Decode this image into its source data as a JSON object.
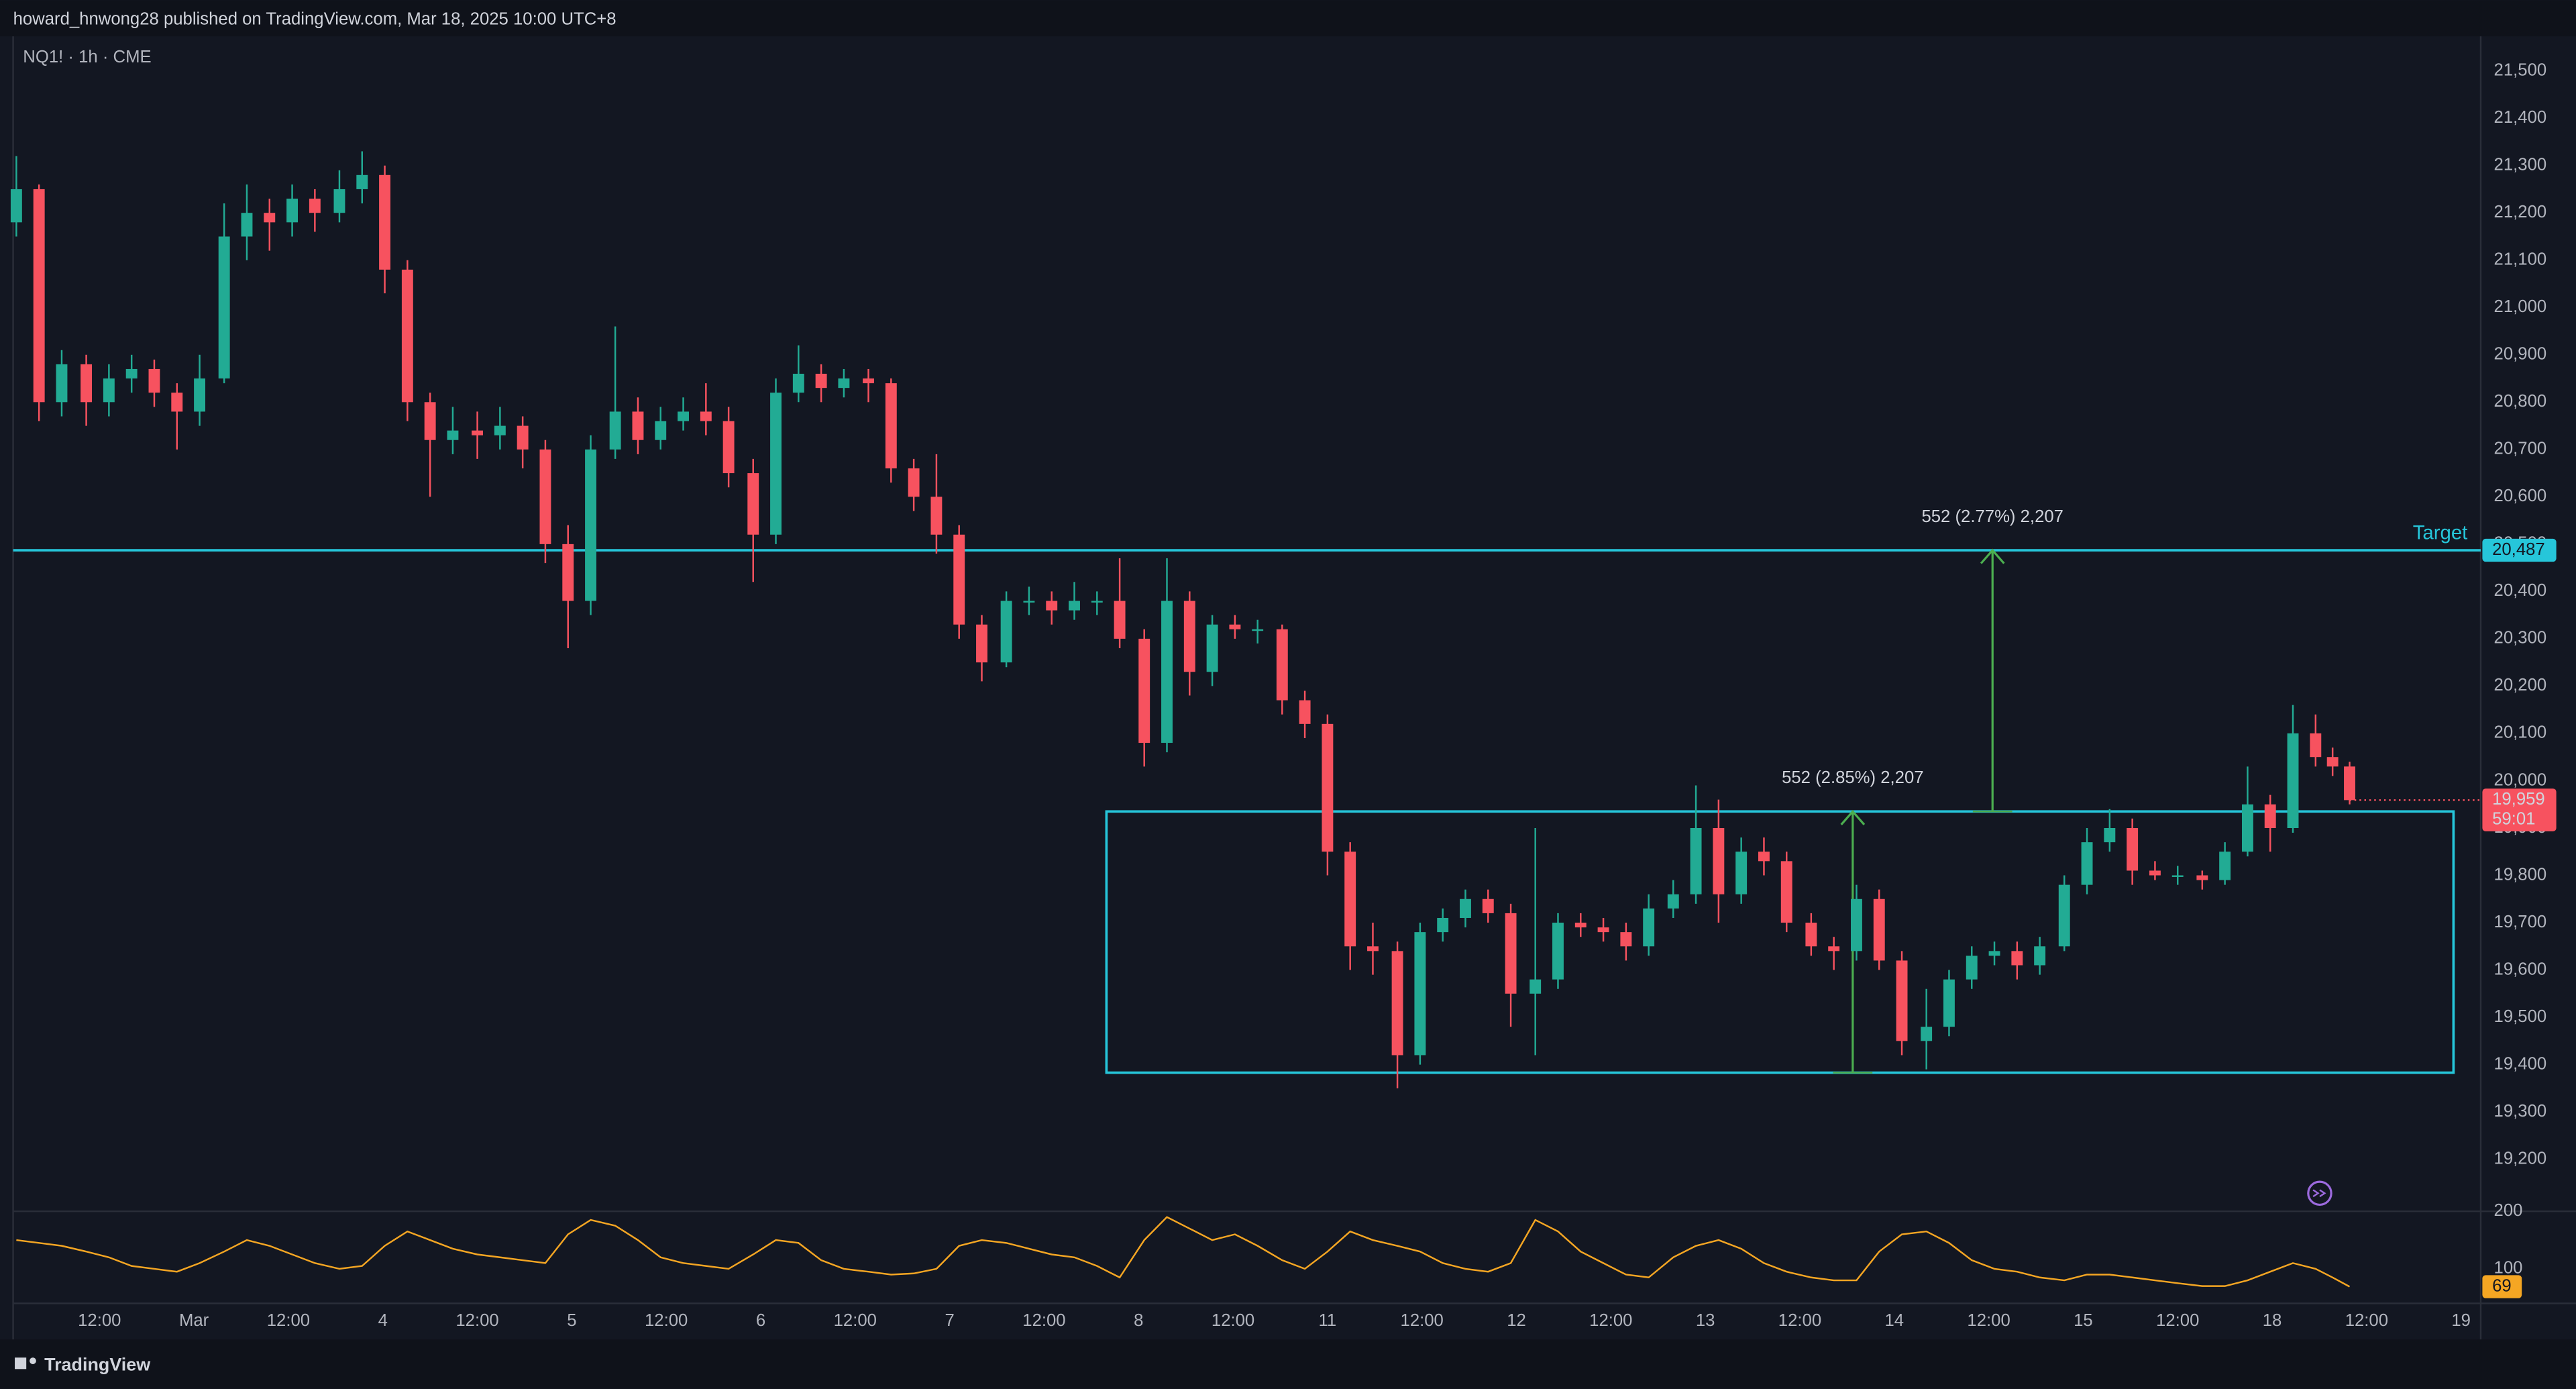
{
  "header": {
    "text": "howard_hnwong28 published on TradingView.com, Mar 18, 2025 10:00 UTC+8",
    "symbol": "NQ1! · 1h · CME"
  },
  "footer": {
    "brand": "TradingView"
  },
  "chart_data": {
    "type": "candlestick",
    "up_color": "#22ab94",
    "down_color": "#f7525f",
    "xlim": [
      -0.957,
      12.104
    ],
    "xticks": [
      {
        "value": -0.5,
        "label": "12:00"
      },
      {
        "value": 0,
        "label": "Mar"
      },
      {
        "value": 0.5,
        "label": "12:00"
      },
      {
        "value": 1,
        "label": "4"
      },
      {
        "value": 1.5,
        "label": "12:00"
      },
      {
        "value": 2,
        "label": "5"
      },
      {
        "value": 2.5,
        "label": "12:00"
      },
      {
        "value": 3,
        "label": "6"
      },
      {
        "value": 3.5,
        "label": "12:00"
      },
      {
        "value": 4,
        "label": "7"
      },
      {
        "value": 4.5,
        "label": "12:00"
      },
      {
        "value": 5,
        "label": "8"
      },
      {
        "value": 5.5,
        "label": "12:00"
      },
      {
        "value": 6,
        "label": "11"
      },
      {
        "value": 6.5,
        "label": "12:00"
      },
      {
        "value": 7,
        "label": "12"
      },
      {
        "value": 7.5,
        "label": "12:00"
      },
      {
        "value": 8,
        "label": "13"
      },
      {
        "value": 8.5,
        "label": "12:00"
      },
      {
        "value": 9,
        "label": "14"
      },
      {
        "value": 9.5,
        "label": "12:00"
      },
      {
        "value": 10,
        "label": "15"
      },
      {
        "value": 10.5,
        "label": "12:00"
      },
      {
        "value": 11,
        "label": "18"
      },
      {
        "value": 11.5,
        "label": "12:00"
      },
      {
        "value": 12,
        "label": "19"
      }
    ],
    "ylim": [
      19090,
      21573
    ],
    "yticks": [
      {
        "value": 19200,
        "label": "19,200"
      },
      {
        "value": 19300,
        "label": "19,300"
      },
      {
        "value": 19400,
        "label": "19,400"
      },
      {
        "value": 19500,
        "label": "19,500"
      },
      {
        "value": 19600,
        "label": "19,600"
      },
      {
        "value": 19700,
        "label": "19,700"
      },
      {
        "value": 19800,
        "label": "19,800"
      },
      {
        "value": 19900,
        "label": "19,900"
      },
      {
        "value": 20000,
        "label": "20,000"
      },
      {
        "value": 20100,
        "label": "20,100"
      },
      {
        "value": 20200,
        "label": "20,200"
      },
      {
        "value": 20300,
        "label": "20,300"
      },
      {
        "value": 20400,
        "label": "20,400"
      },
      {
        "value": 20500,
        "label": "20,500"
      },
      {
        "value": 20600,
        "label": "20,600"
      },
      {
        "value": 20700,
        "label": "20,700"
      },
      {
        "value": 20800,
        "label": "20,800"
      },
      {
        "value": 20900,
        "label": "20,900"
      },
      {
        "value": 21000,
        "label": "21,000"
      },
      {
        "value": 21100,
        "label": "21,100"
      },
      {
        "value": 21200,
        "label": "21,200"
      },
      {
        "value": 21300,
        "label": "21,300"
      },
      {
        "value": 21400,
        "label": "21,400"
      },
      {
        "value": 21500,
        "label": "21,500"
      }
    ],
    "candles": [
      [
        -0.94,
        21180,
        21320,
        21150,
        21250
      ],
      [
        -0.82,
        21250,
        21260,
        20760,
        20800
      ],
      [
        -0.7,
        20800,
        20910,
        20770,
        20880
      ],
      [
        -0.57,
        20880,
        20900,
        20750,
        20800
      ],
      [
        -0.45,
        20800,
        20880,
        20770,
        20850
      ],
      [
        -0.33,
        20850,
        20900,
        20820,
        20870
      ],
      [
        -0.21,
        20870,
        20890,
        20790,
        20820
      ],
      [
        -0.09,
        20820,
        20840,
        20700,
        20780
      ],
      [
        0.03,
        20780,
        20900,
        20750,
        20850
      ],
      [
        0.16,
        20850,
        21220,
        20840,
        21150
      ],
      [
        0.28,
        21150,
        21260,
        21100,
        21200
      ],
      [
        0.4,
        21200,
        21230,
        21120,
        21180
      ],
      [
        0.52,
        21180,
        21260,
        21150,
        21230
      ],
      [
        0.64,
        21230,
        21250,
        21160,
        21200
      ],
      [
        0.77,
        21200,
        21290,
        21180,
        21250
      ],
      [
        0.89,
        21250,
        21330,
        21220,
        21280
      ],
      [
        1.01,
        21280,
        21300,
        21030,
        21080
      ],
      [
        1.13,
        21080,
        21100,
        20760,
        20800
      ],
      [
        1.25,
        20800,
        20820,
        20600,
        20720
      ],
      [
        1.37,
        20720,
        20790,
        20690,
        20740
      ],
      [
        1.5,
        20740,
        20780,
        20680,
        20730
      ],
      [
        1.62,
        20730,
        20790,
        20700,
        20750
      ],
      [
        1.74,
        20750,
        20770,
        20660,
        20700
      ],
      [
        1.86,
        20700,
        20720,
        20460,
        20500
      ],
      [
        1.98,
        20500,
        20540,
        20280,
        20380
      ],
      [
        2.1,
        20380,
        20730,
        20350,
        20700
      ],
      [
        2.23,
        20700,
        20960,
        20680,
        20780
      ],
      [
        2.35,
        20780,
        20810,
        20690,
        20720
      ],
      [
        2.47,
        20720,
        20790,
        20700,
        20760
      ],
      [
        2.59,
        20760,
        20810,
        20740,
        20780
      ],
      [
        2.71,
        20780,
        20840,
        20730,
        20760
      ],
      [
        2.83,
        20760,
        20790,
        20620,
        20650
      ],
      [
        2.96,
        20650,
        20680,
        20420,
        20520
      ],
      [
        3.08,
        20520,
        20850,
        20500,
        20820
      ],
      [
        3.2,
        20820,
        20920,
        20800,
        20860
      ],
      [
        3.32,
        20860,
        20880,
        20800,
        20830
      ],
      [
        3.44,
        20830,
        20870,
        20810,
        20850
      ],
      [
        3.57,
        20850,
        20870,
        20800,
        20840
      ],
      [
        3.69,
        20840,
        20850,
        20630,
        20660
      ],
      [
        3.81,
        20660,
        20680,
        20570,
        20600
      ],
      [
        3.93,
        20600,
        20690,
        20480,
        20520
      ],
      [
        4.05,
        20520,
        20540,
        20300,
        20330
      ],
      [
        4.17,
        20330,
        20350,
        20210,
        20250
      ],
      [
        4.3,
        20250,
        20400,
        20240,
        20380
      ],
      [
        4.42,
        20380,
        20410,
        20350,
        20380
      ],
      [
        4.54,
        20380,
        20400,
        20330,
        20360
      ],
      [
        4.66,
        20360,
        20420,
        20340,
        20380
      ],
      [
        4.78,
        20380,
        20400,
        20350,
        20380
      ],
      [
        4.9,
        20380,
        20470,
        20280,
        20300
      ],
      [
        5.03,
        20300,
        20320,
        20030,
        20080
      ],
      [
        5.15,
        20080,
        20470,
        20060,
        20380
      ],
      [
        5.27,
        20380,
        20400,
        20180,
        20230
      ],
      [
        5.39,
        20230,
        20350,
        20200,
        20330
      ],
      [
        5.51,
        20330,
        20350,
        20300,
        20320
      ],
      [
        5.63,
        20320,
        20340,
        20290,
        20320
      ],
      [
        5.76,
        20320,
        20330,
        20140,
        20170
      ],
      [
        5.88,
        20170,
        20190,
        20090,
        20120
      ],
      [
        6.0,
        20120,
        20140,
        19800,
        19850
      ],
      [
        6.12,
        19850,
        19870,
        19600,
        19650
      ],
      [
        6.24,
        19650,
        19700,
        19590,
        19640
      ],
      [
        6.37,
        19640,
        19660,
        19350,
        19420
      ],
      [
        6.49,
        19420,
        19700,
        19400,
        19680
      ],
      [
        6.61,
        19680,
        19730,
        19660,
        19710
      ],
      [
        6.73,
        19710,
        19770,
        19690,
        19750
      ],
      [
        6.85,
        19750,
        19770,
        19700,
        19720
      ],
      [
        6.97,
        19720,
        19740,
        19480,
        19550
      ],
      [
        7.1,
        19550,
        19900,
        19420,
        19580
      ],
      [
        7.22,
        19580,
        19720,
        19560,
        19700
      ],
      [
        7.34,
        19700,
        19720,
        19670,
        19690
      ],
      [
        7.46,
        19690,
        19710,
        19660,
        19680
      ],
      [
        7.58,
        19680,
        19700,
        19620,
        19650
      ],
      [
        7.7,
        19650,
        19760,
        19630,
        19730
      ],
      [
        7.83,
        19730,
        19790,
        19710,
        19760
      ],
      [
        7.95,
        19760,
        19990,
        19740,
        19900
      ],
      [
        8.07,
        19900,
        19960,
        19700,
        19760
      ],
      [
        8.19,
        19760,
        19880,
        19740,
        19850
      ],
      [
        8.31,
        19850,
        19880,
        19800,
        19830
      ],
      [
        8.43,
        19830,
        19850,
        19680,
        19700
      ],
      [
        8.56,
        19700,
        19720,
        19630,
        19650
      ],
      [
        8.68,
        19650,
        19670,
        19600,
        19640
      ],
      [
        8.8,
        19640,
        19780,
        19620,
        19750
      ],
      [
        8.92,
        19750,
        19770,
        19600,
        19620
      ],
      [
        9.04,
        19620,
        19640,
        19420,
        19450
      ],
      [
        9.17,
        19450,
        19560,
        19390,
        19480
      ],
      [
        9.29,
        19480,
        19600,
        19460,
        19580
      ],
      [
        9.41,
        19580,
        19650,
        19560,
        19630
      ],
      [
        9.53,
        19630,
        19660,
        19610,
        19640
      ],
      [
        9.65,
        19640,
        19660,
        19580,
        19610
      ],
      [
        9.77,
        19610,
        19670,
        19590,
        19650
      ],
      [
        9.9,
        19650,
        19800,
        19640,
        19780
      ],
      [
        10.02,
        19780,
        19900,
        19760,
        19870
      ],
      [
        10.14,
        19870,
        19940,
        19850,
        19900
      ],
      [
        10.26,
        19900,
        19920,
        19780,
        19810
      ],
      [
        10.38,
        19810,
        19830,
        19790,
        19800
      ],
      [
        10.5,
        19800,
        19820,
        19780,
        19800
      ],
      [
        10.63,
        19800,
        19810,
        19770,
        19790
      ],
      [
        10.75,
        19790,
        19870,
        19780,
        19850
      ],
      [
        10.87,
        19850,
        20030,
        19840,
        19950
      ],
      [
        10.99,
        19950,
        19970,
        19850,
        19900
      ],
      [
        11.11,
        19900,
        20160,
        19890,
        20100
      ],
      [
        11.23,
        20100,
        20140,
        20030,
        20050
      ],
      [
        11.32,
        20050,
        20070,
        20010,
        20030
      ],
      [
        11.41,
        20030,
        20040,
        19950,
        19959
      ]
    ],
    "last_price_label": "19,959",
    "countdown": "59:01",
    "target": {
      "label": "Target",
      "value": 20487,
      "value_label": "20,487",
      "color": "#26c6da"
    },
    "range_box": {
      "x": [
        4.83,
        11.96
      ],
      "y": [
        19383,
        19935
      ],
      "color": "#26c6da"
    },
    "measures": [
      {
        "text": "552 (2.85%) 2,207",
        "x": 8.78,
        "from": 19383,
        "to": 19935
      },
      {
        "text": "552 (2.77%) 2,207",
        "x": 9.52,
        "from": 19935,
        "to": 20487
      }
    ],
    "measure_color": "#4caf50",
    "oscillator": {
      "color": "#f5a623",
      "ylim": [
        40,
        200
      ],
      "yticks": [
        100,
        200
      ],
      "values": [
        150,
        145,
        140,
        130,
        120,
        105,
        100,
        95,
        110,
        130,
        150,
        140,
        125,
        110,
        100,
        105,
        140,
        165,
        150,
        135,
        125,
        120,
        115,
        110,
        160,
        185,
        175,
        150,
        120,
        110,
        105,
        100,
        125,
        150,
        145,
        115,
        100,
        95,
        90,
        92,
        100,
        140,
        150,
        145,
        135,
        125,
        120,
        105,
        85,
        150,
        190,
        170,
        150,
        160,
        140,
        115,
        100,
        130,
        165,
        150,
        140,
        130,
        110,
        100,
        95,
        110,
        185,
        165,
        130,
        110,
        90,
        85,
        120,
        140,
        150,
        135,
        110,
        95,
        85,
        80,
        80,
        130,
        160,
        165,
        145,
        115,
        100,
        95,
        85,
        80,
        90,
        90,
        85,
        80,
        75,
        70,
        70,
        80,
        95,
        110,
        100,
        85,
        69
      ]
    }
  }
}
